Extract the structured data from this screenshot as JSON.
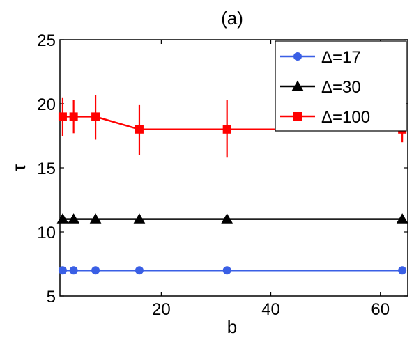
{
  "chart_data": {
    "type": "line",
    "title": "(a)",
    "xlabel": "b",
    "ylabel": "τ",
    "xlim": [
      1.5,
      65
    ],
    "ylim": [
      5,
      25
    ],
    "xticks": [
      20,
      40,
      60
    ],
    "yticks": [
      5,
      10,
      15,
      20,
      25
    ],
    "grid": false,
    "legend_position": "top-right",
    "x": [
      2,
      4,
      8,
      16,
      32,
      64
    ],
    "series": [
      {
        "name": "Δ=17",
        "color": "#3a5fe5",
        "marker": "circle",
        "values": [
          7,
          7,
          7,
          7,
          7,
          7
        ]
      },
      {
        "name": "Δ=30",
        "color": "#000000",
        "marker": "triangle",
        "values": [
          11,
          11,
          11,
          11,
          11,
          11
        ]
      },
      {
        "name": "Δ=100",
        "color": "#ff0000",
        "marker": "square",
        "values": [
          19,
          19,
          19,
          18,
          18,
          18
        ],
        "error_low": [
          17.5,
          17.7,
          17.2,
          16.0,
          15.8,
          17.0
        ],
        "error_high": [
          20.5,
          20.3,
          20.7,
          19.9,
          20.3,
          18.9
        ]
      }
    ]
  }
}
